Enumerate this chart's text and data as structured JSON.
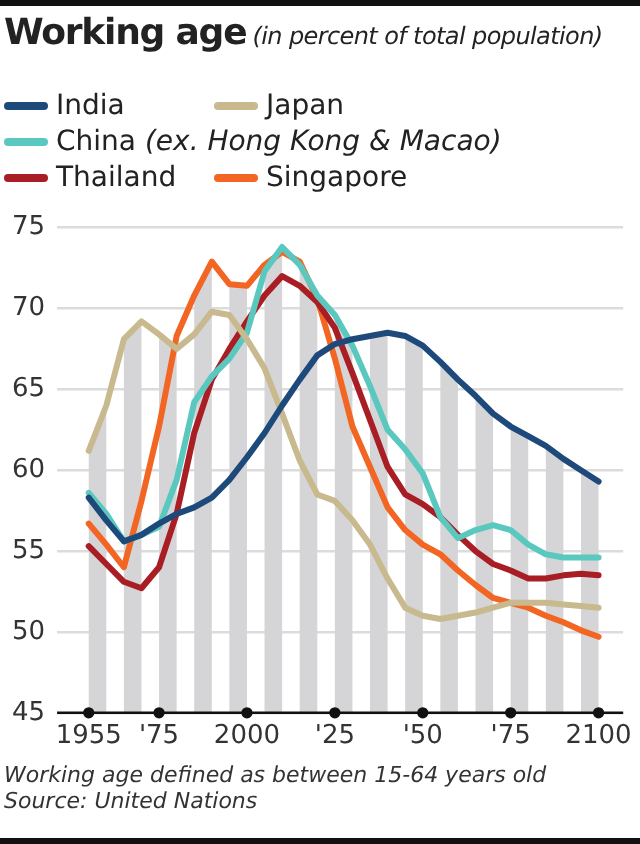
{
  "chart_data": {
    "type": "line",
    "title": "Working age",
    "subtitle": "(in percent of total population)",
    "x": [
      1955,
      1960,
      1965,
      1970,
      1975,
      1980,
      1985,
      1990,
      1995,
      2000,
      2005,
      2010,
      2015,
      2020,
      2025,
      2030,
      2035,
      2040,
      2045,
      2050,
      2055,
      2060,
      2065,
      2070,
      2075,
      2080,
      2085,
      2090,
      2095,
      2100
    ],
    "series": [
      {
        "name": "India",
        "color": "#1d4a7a",
        "values": [
          58.3,
          56.9,
          55.6,
          56,
          56.7,
          57.3,
          57.7,
          58.3,
          59.4,
          60.8,
          62.3,
          64,
          65.6,
          67.1,
          67.8,
          68.1,
          68.3,
          68.5,
          68.3,
          67.7,
          66.7,
          65.6,
          64.6,
          63.5,
          62.7,
          62.1,
          61.5,
          60.7,
          60,
          59.3
        ]
      },
      {
        "name": "Japan",
        "color": "#c8b98e",
        "values": [
          61.2,
          64,
          68.1,
          69.2,
          68.4,
          67.5,
          68.4,
          69.8,
          69.6,
          68.1,
          66.3,
          63.5,
          60.6,
          58.5,
          58.1,
          56.9,
          55.4,
          53.3,
          51.5,
          51,
          50.8,
          51,
          51.2,
          51.5,
          51.8,
          51.8,
          51.8,
          51.7,
          51.6,
          51.5
        ]
      },
      {
        "name": "China (ex. Hong Kong & Macao)",
        "color": "#5bc8c0",
        "values": [
          58.6,
          57.3,
          55.6,
          56,
          56.5,
          59.4,
          64.2,
          65.8,
          66.9,
          68.5,
          72.3,
          73.8,
          72.7,
          70.8,
          69.6,
          67.7,
          65.2,
          62.5,
          61.3,
          59.8,
          57.1,
          55.8,
          56.3,
          56.6,
          56.3,
          55.4,
          54.8,
          54.6,
          54.6,
          54.6
        ]
      },
      {
        "name": "Thailand",
        "color": "#a81e24",
        "values": [
          55.3,
          54.2,
          53.1,
          52.7,
          54,
          57.3,
          62.3,
          65.6,
          67.5,
          69.2,
          70.8,
          72,
          71.4,
          70.4,
          68.8,
          66,
          63.1,
          60.2,
          58.5,
          57.9,
          57.1,
          56,
          55,
          54.2,
          53.8,
          53.3,
          53.3,
          53.5,
          53.6,
          53.5
        ]
      },
      {
        "name": "Singapore",
        "color": "#f26522",
        "values": [
          56.7,
          55.4,
          54,
          58.1,
          62.7,
          68.3,
          70.8,
          72.9,
          71.5,
          71.4,
          72.7,
          73.5,
          72.9,
          70.6,
          66.9,
          62.7,
          60.2,
          57.7,
          56.3,
          55.4,
          54.8,
          53.8,
          52.9,
          52.1,
          51.8,
          51.5,
          51,
          50.6,
          50.1,
          49.7
        ]
      }
    ],
    "xlim": [
      1946,
      2107
    ],
    "xticks": [
      1955,
      {
        "value": 1975,
        "label": "'75"
      },
      2000,
      {
        "value": 2025,
        "label": "'25"
      },
      {
        "value": 2050,
        "label": "'50"
      },
      {
        "value": 2075,
        "label": "'75"
      },
      2100
    ],
    "ylim": [
      45,
      75
    ],
    "yticks": [
      45,
      50,
      55,
      60,
      65,
      70,
      75
    ],
    "bands": [
      {
        "axis": "x",
        "from": 1955,
        "to": 1960,
        "color": "#d5d5d7"
      },
      {
        "axis": "x",
        "from": 1965,
        "to": 1970,
        "color": "#d5d5d7"
      },
      {
        "axis": "x",
        "from": 1975,
        "to": 1980,
        "color": "#d5d5d7"
      },
      {
        "axis": "x",
        "from": 1985,
        "to": 1990,
        "color": "#d5d5d7"
      },
      {
        "axis": "x",
        "from": 1995,
        "to": 2000,
        "color": "#d5d5d7"
      },
      {
        "axis": "x",
        "from": 2005,
        "to": 2010,
        "color": "#d5d5d7"
      },
      {
        "axis": "x",
        "from": 2015,
        "to": 2020,
        "color": "#d5d5d7"
      },
      {
        "axis": "x",
        "from": 2025,
        "to": 2030,
        "color": "#d5d5d7"
      },
      {
        "axis": "x",
        "from": 2035,
        "to": 2040,
        "color": "#d5d5d7"
      },
      {
        "axis": "x",
        "from": 2045,
        "to": 2050,
        "color": "#d5d5d7"
      },
      {
        "axis": "x",
        "from": 2055,
        "to": 2060,
        "color": "#d5d5d7"
      },
      {
        "axis": "x",
        "from": 2065,
        "to": 2070,
        "color": "#d5d5d7"
      },
      {
        "axis": "x",
        "from": 2075,
        "to": 2080,
        "color": "#d5d5d7"
      },
      {
        "axis": "x",
        "from": 2085,
        "to": 2090,
        "color": "#d5d5d7"
      },
      {
        "axis": "x",
        "from": 2095,
        "to": 2100,
        "color": "#d5d5d7"
      }
    ],
    "grid": "y",
    "legend": "top left",
    "marker": "none",
    "line_style": "solid",
    "annotations": [
      "Working age defined as between 15-64 years old",
      "Source: United Nations"
    ]
  }
}
